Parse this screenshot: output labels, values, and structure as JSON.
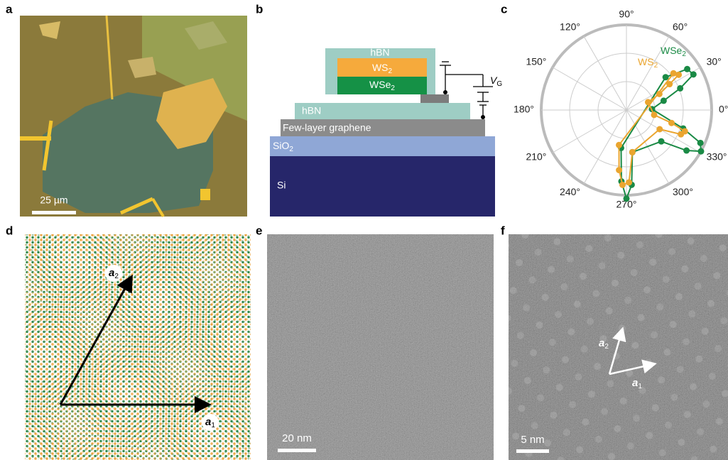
{
  "panel_labels": [
    "a",
    "b",
    "c",
    "d",
    "e",
    "f"
  ],
  "panel_a": {
    "scale_bar": "25 µm"
  },
  "panel_b": {
    "top_hbn": "hBN",
    "ws2": {
      "main": "WS",
      "sub": "2"
    },
    "wse2": {
      "main": "WSe",
      "sub": "2"
    },
    "bottom_hbn": "hBN",
    "graphene": "Few-layer graphene",
    "sio2": {
      "main": "SiO",
      "sub": "2"
    },
    "si": "Si",
    "gate": {
      "main": "V",
      "sub": "G"
    }
  },
  "chart_data": {
    "type": "polar",
    "rlim": [
      0,
      1
    ],
    "angle_ticks": [
      {
        "value": 0,
        "label": "0°"
      },
      {
        "value": 30,
        "label": "30°"
      },
      {
        "value": 60,
        "label": "60°"
      },
      {
        "value": 90,
        "label": "90°"
      },
      {
        "value": 120,
        "label": "120°"
      },
      {
        "value": 150,
        "label": "150°"
      },
      {
        "value": 180,
        "label": "180°"
      },
      {
        "value": 210,
        "label": "210°"
      },
      {
        "value": 240,
        "label": "240°"
      },
      {
        "value": 270,
        "label": "270°"
      },
      {
        "value": 300,
        "label": "300°"
      },
      {
        "value": 330,
        "label": "330°"
      }
    ],
    "series": [
      {
        "name": {
          "main": "WSe",
          "sub": "2"
        },
        "color": "#1a8a45",
        "angles": [
          262,
          266,
          270,
          274,
          278,
          318,
          326,
          331,
          336,
          342,
          2,
          14,
          22,
          28,
          34,
          40
        ],
        "values": [
          0.45,
          0.84,
          1.04,
          0.88,
          0.5,
          0.55,
          0.85,
          1.0,
          0.95,
          0.7,
          0.3,
          0.45,
          0.68,
          0.89,
          0.86,
          0.6
        ]
      },
      {
        "name": {
          "main": "WS",
          "sub": "2"
        },
        "color": "#eaa52f",
        "angles": [
          258,
          263,
          267,
          272,
          278,
          330,
          336,
          340,
          344,
          350,
          20,
          26,
          31,
          34,
          38
        ],
        "values": [
          0.42,
          0.71,
          0.88,
          0.85,
          0.5,
          0.45,
          0.7,
          0.73,
          0.55,
          0.33,
          0.27,
          0.43,
          0.59,
          0.74,
          0.7
        ]
      }
    ]
  },
  "panel_d": {
    "a2": {
      "main": "a",
      "sub": "2"
    },
    "a1": {
      "main": "a",
      "sub": "1"
    }
  },
  "panel_e": {
    "scale_bar": "20 nm"
  },
  "panel_f": {
    "scale_bar": "5 nm",
    "a2": {
      "main": "a",
      "sub": "2"
    },
    "a1": {
      "main": "a",
      "sub": "1"
    }
  }
}
